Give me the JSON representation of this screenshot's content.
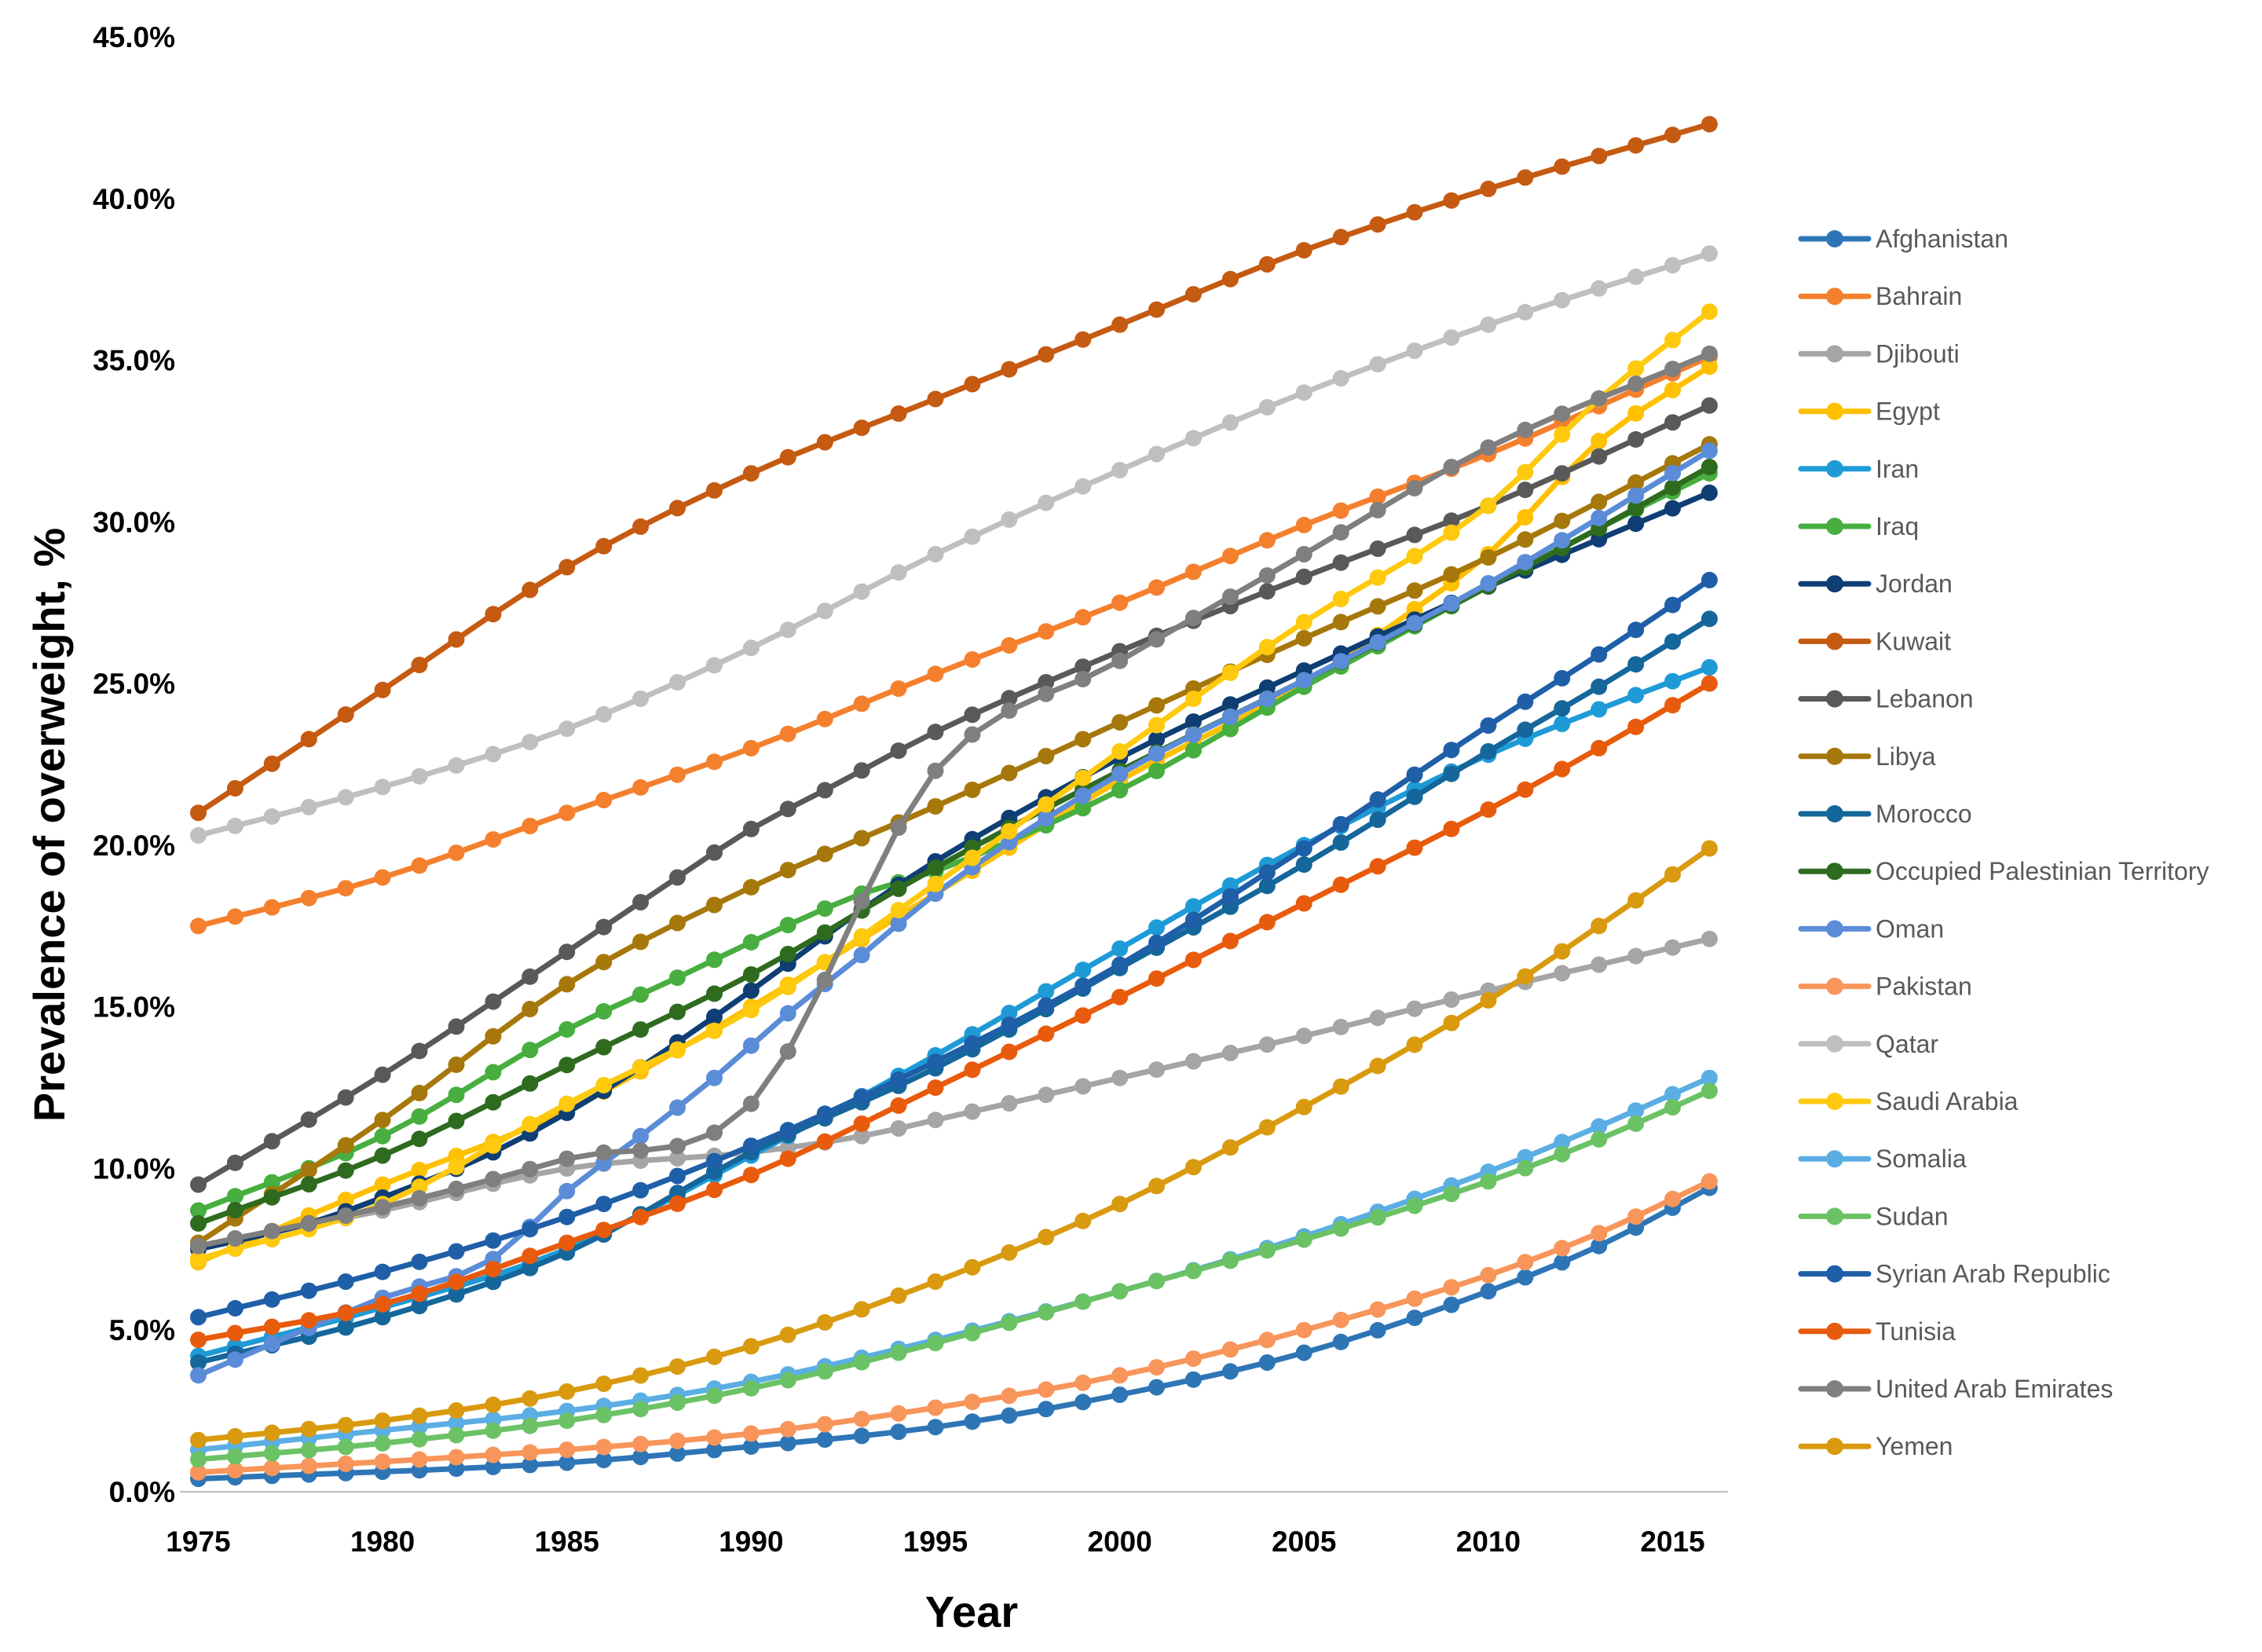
{
  "chart_data": {
    "type": "line",
    "title": "",
    "xlabel": "Year",
    "ylabel": "Prevalence of overweight, %",
    "x": [
      1975,
      1976,
      1977,
      1978,
      1979,
      1980,
      1981,
      1982,
      1983,
      1984,
      1985,
      1986,
      1987,
      1988,
      1989,
      1990,
      1991,
      1992,
      1993,
      1994,
      1995,
      1996,
      1997,
      1998,
      1999,
      2000,
      2001,
      2002,
      2003,
      2004,
      2005,
      2006,
      2007,
      2008,
      2009,
      2010,
      2011,
      2012,
      2013,
      2014,
      2015,
      2016
    ],
    "xlim": [
      1974.5,
      2016.5
    ],
    "xticks": [
      1975,
      1980,
      1985,
      1990,
      1995,
      2000,
      2005,
      2010,
      2015
    ],
    "xtick_labels": [
      "1975",
      "1980",
      "1985",
      "1990",
      "1995",
      "2000",
      "2005",
      "2010",
      "2015"
    ],
    "ylim": [
      0,
      45
    ],
    "yticks": [
      0,
      5,
      10,
      15,
      20,
      25,
      30,
      35,
      40,
      45
    ],
    "ytick_labels": [
      "0.0%",
      "5.0%",
      "10.0%",
      "15.0%",
      "20.0%",
      "25.0%",
      "30.0%",
      "35.0%",
      "40.0%",
      "45.0%"
    ],
    "grid": false,
    "legend_position": "right",
    "series": [
      {
        "name": "Afghanistan",
        "color": "#2E75B6",
        "anchors": [
          [
            1975,
            0.4
          ],
          [
            1985,
            0.9
          ],
          [
            1990,
            1.4
          ],
          [
            1995,
            2.0
          ],
          [
            2000,
            3.0
          ],
          [
            2005,
            4.3
          ],
          [
            2010,
            6.2
          ],
          [
            2013,
            7.6
          ],
          [
            2016,
            9.4
          ]
        ]
      },
      {
        "name": "Bahrain",
        "color": "#F4802E",
        "anchors": [
          [
            1975,
            17.5
          ],
          [
            1980,
            19.0
          ],
          [
            1985,
            21.0
          ],
          [
            1990,
            23.0
          ],
          [
            1995,
            25.3
          ],
          [
            2000,
            27.5
          ],
          [
            2005,
            29.9
          ],
          [
            2010,
            32.1
          ],
          [
            2016,
            35.1
          ]
        ]
      },
      {
        "name": "Djibouti",
        "color": "#A5A5A5",
        "anchors": [
          [
            1975,
            7.6
          ],
          [
            1980,
            8.7
          ],
          [
            1985,
            10.0
          ],
          [
            1990,
            10.5
          ],
          [
            1993,
            11.0
          ],
          [
            1995,
            11.5
          ],
          [
            2000,
            12.8
          ],
          [
            2005,
            14.1
          ],
          [
            2010,
            15.5
          ],
          [
            2016,
            17.1
          ]
        ]
      },
      {
        "name": "Egypt",
        "color": "#FFC000",
        "anchors": [
          [
            1975,
            7.1
          ],
          [
            1980,
            9.5
          ],
          [
            1985,
            11.8
          ],
          [
            1990,
            15.0
          ],
          [
            1995,
            18.5
          ],
          [
            2000,
            22.0
          ],
          [
            2005,
            25.0
          ],
          [
            2008,
            27.3
          ],
          [
            2010,
            29.0
          ],
          [
            2013,
            32.5
          ],
          [
            2016,
            34.8
          ]
        ]
      },
      {
        "name": "Iran",
        "color": "#1E9BD7",
        "anchors": [
          [
            1975,
            4.2
          ],
          [
            1980,
            5.7
          ],
          [
            1985,
            7.5
          ],
          [
            1990,
            10.4
          ],
          [
            1995,
            13.5
          ],
          [
            2000,
            16.8
          ],
          [
            2005,
            20.0
          ],
          [
            2010,
            22.8
          ],
          [
            2013,
            24.2
          ],
          [
            2016,
            25.5
          ]
        ]
      },
      {
        "name": "Iraq",
        "color": "#47AE3F",
        "anchors": [
          [
            1975,
            8.7
          ],
          [
            1980,
            11.0
          ],
          [
            1985,
            14.3
          ],
          [
            1988,
            15.9
          ],
          [
            1990,
            17.0
          ],
          [
            1993,
            18.5
          ],
          [
            1995,
            19.2
          ],
          [
            2000,
            21.7
          ],
          [
            2005,
            24.9
          ],
          [
            2010,
            28.0
          ],
          [
            2013,
            29.8
          ],
          [
            2016,
            31.5
          ]
        ]
      },
      {
        "name": "Jordan",
        "color": "#0E3E73",
        "anchors": [
          [
            1975,
            7.5
          ],
          [
            1978,
            8.3
          ],
          [
            1980,
            9.1
          ],
          [
            1983,
            10.5
          ],
          [
            1986,
            12.4
          ],
          [
            1988,
            13.9
          ],
          [
            1990,
            15.5
          ],
          [
            1993,
            18.0
          ],
          [
            1995,
            19.5
          ],
          [
            2000,
            22.7
          ],
          [
            2005,
            25.4
          ],
          [
            2010,
            28.0
          ],
          [
            2016,
            30.9
          ]
        ]
      },
      {
        "name": "Kuwait",
        "color": "#C55A11",
        "anchors": [
          [
            1975,
            21.0
          ],
          [
            1980,
            24.8
          ],
          [
            1985,
            28.6
          ],
          [
            1990,
            31.5
          ],
          [
            1995,
            33.8
          ],
          [
            2000,
            36.1
          ],
          [
            2005,
            38.4
          ],
          [
            2010,
            40.3
          ],
          [
            2016,
            42.3
          ]
        ]
      },
      {
        "name": "Lebanon",
        "color": "#595959",
        "anchors": [
          [
            1975,
            9.5
          ],
          [
            1980,
            12.9
          ],
          [
            1985,
            16.7
          ],
          [
            1988,
            19.0
          ],
          [
            1990,
            20.5
          ],
          [
            1992,
            21.7
          ],
          [
            1995,
            23.5
          ],
          [
            2000,
            26.0
          ],
          [
            2005,
            28.3
          ],
          [
            2010,
            30.5
          ],
          [
            2016,
            33.6
          ]
        ]
      },
      {
        "name": "Libya",
        "color": "#A6780B",
        "anchors": [
          [
            1975,
            7.7
          ],
          [
            1980,
            11.5
          ],
          [
            1985,
            15.7
          ],
          [
            1990,
            18.7
          ],
          [
            1995,
            21.2
          ],
          [
            2000,
            23.8
          ],
          [
            2005,
            26.4
          ],
          [
            2010,
            28.9
          ],
          [
            2016,
            32.4
          ]
        ]
      },
      {
        "name": "Morocco",
        "color": "#15669B",
        "anchors": [
          [
            1975,
            4.0
          ],
          [
            1980,
            5.4
          ],
          [
            1985,
            7.4
          ],
          [
            1990,
            10.5
          ],
          [
            1995,
            13.1
          ],
          [
            2000,
            16.2
          ],
          [
            2005,
            19.4
          ],
          [
            2010,
            22.9
          ],
          [
            2013,
            24.9
          ],
          [
            2016,
            27.0
          ]
        ]
      },
      {
        "name": "Occupied Palestinian Territory",
        "color": "#2E6B1F",
        "anchors": [
          [
            1975,
            8.3
          ],
          [
            1980,
            10.4
          ],
          [
            1985,
            13.2
          ],
          [
            1990,
            16.0
          ],
          [
            1995,
            19.3
          ],
          [
            2000,
            22.3
          ],
          [
            2005,
            25.1
          ],
          [
            2010,
            28.0
          ],
          [
            2013,
            29.8
          ],
          [
            2016,
            31.7
          ]
        ]
      },
      {
        "name": "Oman",
        "color": "#5B8CD8",
        "anchors": [
          [
            1975,
            3.6
          ],
          [
            1980,
            6.0
          ],
          [
            1983,
            7.2
          ],
          [
            1985,
            9.3
          ],
          [
            1987,
            11.0
          ],
          [
            1989,
            12.8
          ],
          [
            1991,
            14.8
          ],
          [
            1993,
            16.6
          ],
          [
            1995,
            18.5
          ],
          [
            2000,
            22.2
          ],
          [
            2005,
            25.1
          ],
          [
            2010,
            28.1
          ],
          [
            2016,
            32.2
          ]
        ]
      },
      {
        "name": "Pakistan",
        "color": "#F8955A",
        "anchors": [
          [
            1975,
            0.6
          ],
          [
            1985,
            1.3
          ],
          [
            1990,
            1.8
          ],
          [
            1995,
            2.6
          ],
          [
            2000,
            3.6
          ],
          [
            2005,
            5.0
          ],
          [
            2010,
            6.7
          ],
          [
            2013,
            8.0
          ],
          [
            2016,
            9.6
          ]
        ]
      },
      {
        "name": "Qatar",
        "color": "#BFBFBF",
        "anchors": [
          [
            1975,
            20.3
          ],
          [
            1980,
            21.8
          ],
          [
            1985,
            23.6
          ],
          [
            1990,
            26.1
          ],
          [
            1995,
            29.0
          ],
          [
            2000,
            31.6
          ],
          [
            2005,
            34.0
          ],
          [
            2010,
            36.1
          ],
          [
            2016,
            38.3
          ]
        ]
      },
      {
        "name": "Saudi Arabia",
        "color": "#FFC90E",
        "anchors": [
          [
            1975,
            7.2
          ],
          [
            1980,
            8.9
          ],
          [
            1985,
            12.0
          ],
          [
            1990,
            14.9
          ],
          [
            1995,
            18.8
          ],
          [
            2000,
            22.9
          ],
          [
            2005,
            26.9
          ],
          [
            2010,
            30.5
          ],
          [
            2013,
            33.8
          ],
          [
            2016,
            36.5
          ]
        ]
      },
      {
        "name": "Somalia",
        "color": "#5BAEE3",
        "anchors": [
          [
            1975,
            1.3
          ],
          [
            1980,
            1.9
          ],
          [
            1985,
            2.5
          ],
          [
            1990,
            3.4
          ],
          [
            1995,
            4.7
          ],
          [
            2000,
            6.2
          ],
          [
            2005,
            7.9
          ],
          [
            2010,
            9.9
          ],
          [
            2013,
            11.3
          ],
          [
            2016,
            12.8
          ]
        ]
      },
      {
        "name": "Sudan",
        "color": "#6BC265",
        "anchors": [
          [
            1975,
            1.0
          ],
          [
            1980,
            1.5
          ],
          [
            1985,
            2.2
          ],
          [
            1990,
            3.2
          ],
          [
            1995,
            4.6
          ],
          [
            2000,
            6.2
          ],
          [
            2005,
            7.8
          ],
          [
            2010,
            9.6
          ],
          [
            2013,
            10.9
          ],
          [
            2016,
            12.4
          ]
        ]
      },
      {
        "name": "Syrian Arab Republic",
        "color": "#1F5FA8",
        "anchors": [
          [
            1975,
            5.4
          ],
          [
            1980,
            6.8
          ],
          [
            1985,
            8.5
          ],
          [
            1990,
            10.7
          ],
          [
            1995,
            13.3
          ],
          [
            2000,
            16.3
          ],
          [
            2005,
            19.9
          ],
          [
            2010,
            23.7
          ],
          [
            2013,
            25.9
          ],
          [
            2016,
            28.2
          ]
        ]
      },
      {
        "name": "Tunisia",
        "color": "#E85B0C",
        "anchors": [
          [
            1975,
            4.7
          ],
          [
            1980,
            5.8
          ],
          [
            1985,
            7.7
          ],
          [
            1990,
            9.8
          ],
          [
            1995,
            12.5
          ],
          [
            2000,
            15.3
          ],
          [
            2005,
            18.2
          ],
          [
            2010,
            21.1
          ],
          [
            2013,
            23.0
          ],
          [
            2016,
            25.0
          ]
        ]
      },
      {
        "name": "United Arab Emirates",
        "color": "#7F7F7F",
        "anchors": [
          [
            1975,
            7.6
          ],
          [
            1980,
            8.8
          ],
          [
            1985,
            10.3
          ],
          [
            1990,
            12.0
          ],
          [
            1995,
            22.3
          ],
          [
            2000,
            25.7
          ],
          [
            2005,
            29.0
          ],
          [
            2010,
            32.3
          ],
          [
            2016,
            35.2
          ]
        ]
      },
      {
        "name": "Yemen",
        "color": "#D99A0F",
        "anchors": [
          [
            1975,
            1.6
          ],
          [
            1980,
            2.2
          ],
          [
            1985,
            3.1
          ],
          [
            1990,
            4.5
          ],
          [
            1995,
            6.5
          ],
          [
            2000,
            8.9
          ],
          [
            2005,
            11.9
          ],
          [
            2010,
            15.2
          ],
          [
            2013,
            17.5
          ],
          [
            2016,
            19.9
          ]
        ]
      }
    ]
  }
}
